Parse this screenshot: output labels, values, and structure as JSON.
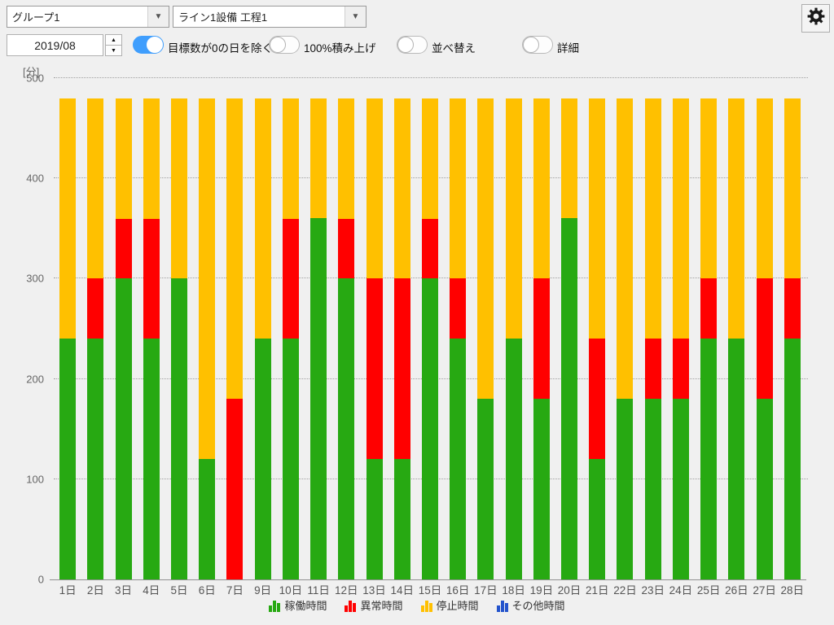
{
  "header": {
    "group_select": {
      "value": "グループ1"
    },
    "line_select": {
      "value": "ライン1設備 工程1"
    },
    "month_spinner": {
      "value": "2019/08"
    },
    "toggles": [
      {
        "label": "目標数が0の日を除く",
        "on": true
      },
      {
        "label": "100%積み上げ",
        "on": false
      },
      {
        "label": "並べ替え",
        "on": false
      },
      {
        "label": "詳細",
        "on": false
      }
    ]
  },
  "icons": {
    "dropdown_arrow": "▼",
    "spin_up": "▲",
    "spin_down": "▼"
  },
  "colors": {
    "background": "#f0f0f0",
    "toggle_on": "#3f9efd",
    "operating": "#27a912",
    "abnormal": "#ff0000",
    "stop": "#ffc000",
    "other": "#2353cc"
  },
  "chart_data": {
    "type": "bar",
    "stacked": true,
    "unit_label": "[分]",
    "ylim": [
      0,
      500
    ],
    "yticks": [
      0,
      100,
      200,
      300,
      400,
      500
    ],
    "grid": "dotted-horizontal",
    "legend_position": "bottom-center",
    "categories": [
      "1日",
      "2日",
      "3日",
      "4日",
      "5日",
      "6日",
      "7日",
      "9日",
      "10日",
      "11日",
      "12日",
      "13日",
      "14日",
      "15日",
      "16日",
      "17日",
      "18日",
      "19日",
      "20日",
      "21日",
      "22日",
      "23日",
      "24日",
      "25日",
      "26日",
      "27日",
      "28日"
    ],
    "series": [
      {
        "name": "稼働時間",
        "key": "operating-time",
        "color": "#27a912",
        "values": [
          240,
          240,
          300,
          240,
          300,
          120,
          0,
          240,
          240,
          360,
          300,
          120,
          120,
          300,
          240,
          180,
          240,
          180,
          360,
          120,
          180,
          180,
          180,
          240,
          240,
          180,
          240
        ]
      },
      {
        "name": "異常時間",
        "key": "abnormal-time",
        "color": "#ff0000",
        "values": [
          0,
          60,
          60,
          120,
          0,
          0,
          180,
          0,
          120,
          0,
          60,
          180,
          180,
          60,
          60,
          0,
          0,
          120,
          0,
          120,
          0,
          60,
          60,
          60,
          0,
          120,
          60
        ]
      },
      {
        "name": "停止時間",
        "key": "stop-time",
        "color": "#ffc000",
        "values": [
          240,
          180,
          120,
          120,
          180,
          360,
          300,
          240,
          120,
          120,
          120,
          180,
          180,
          120,
          180,
          300,
          240,
          180,
          120,
          240,
          300,
          240,
          240,
          180,
          240,
          180,
          180
        ]
      },
      {
        "name": "その他時間",
        "key": "other-time",
        "color": "#2353cc",
        "values": [
          0,
          0,
          0,
          0,
          0,
          0,
          0,
          0,
          0,
          0,
          0,
          0,
          0,
          0,
          0,
          0,
          0,
          0,
          0,
          0,
          0,
          0,
          0,
          0,
          0,
          0,
          0
        ]
      }
    ]
  }
}
